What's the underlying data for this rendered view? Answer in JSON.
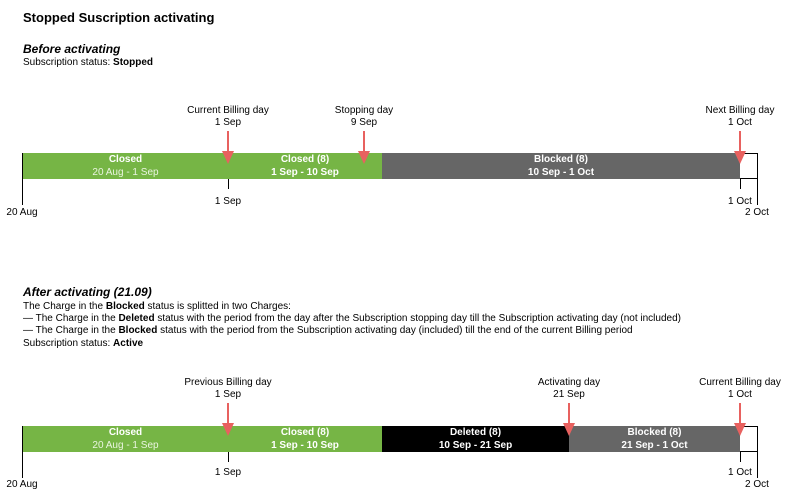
{
  "title": "Stopped Suscription activating",
  "before": {
    "heading": "Before activating",
    "status_prefix": "Subscription status:",
    "status_value": "Stopped",
    "markers": [
      {
        "name": "current-billing-day",
        "label": "Current Billing day",
        "date": "1 Sep"
      },
      {
        "name": "stopping-day",
        "label": "Stopping day",
        "date": "9 Sep"
      },
      {
        "name": "next-billing-day",
        "label": "Next Billing day",
        "date": "1 Oct"
      }
    ],
    "segments": [
      {
        "name": "closed",
        "status": "Closed",
        "period": "20 Aug - 1 Sep"
      },
      {
        "name": "closed-8",
        "status": "Closed (8)",
        "period": "1 Sep - 10 Sep"
      },
      {
        "name": "blocked-8",
        "status": "Blocked (8)",
        "period": "10 Sep - 1 Oct"
      }
    ],
    "axis": {
      "start": "20 Aug",
      "tick_1": "1 Sep",
      "tick_2": "1 Oct",
      "end": "2 Oct"
    }
  },
  "after": {
    "heading": "After activating (21.09)",
    "desc_1_pre": "The Charge in the",
    "desc_1_bold": "Blocked",
    "desc_1_post": "status is splitted in two Charges:",
    "desc_2_pre": "— The Charge in the",
    "desc_2_bold": "Deleted",
    "desc_2_post": "status with the period from the day after the Subscription stopping day till the Subscription activating day (not included)",
    "desc_3_pre": "— The Charge in the",
    "desc_3_bold": "Blocked",
    "desc_3_post": "status with the period from the Subscription activating day (included) till the end of the current Billing period",
    "status_prefix": "Subscription status:",
    "status_value": "Active",
    "markers": [
      {
        "name": "previous-billing-day",
        "label": "Previous Billing day",
        "date": "1 Sep"
      },
      {
        "name": "activating-day",
        "label": "Activating day",
        "date": "21 Sep"
      },
      {
        "name": "current-billing-day",
        "label": "Current Billing day",
        "date": "1 Oct"
      }
    ],
    "segments": [
      {
        "name": "closed",
        "status": "Closed",
        "period": "20 Aug - 1 Sep"
      },
      {
        "name": "closed-8",
        "status": "Closed (8)",
        "period": "1 Sep - 10 Sep"
      },
      {
        "name": "deleted-8",
        "status": "Deleted (8)",
        "period": "10 Sep - 21 Sep"
      },
      {
        "name": "blocked-8",
        "status": "Blocked (8)",
        "period": "21 Sep - 1 Oct"
      }
    ],
    "axis": {
      "start": "20 Aug",
      "tick_1": "1 Sep",
      "tick_2": "1 Oct",
      "end": "2 Oct"
    }
  },
  "colors": {
    "closed": "#76b545",
    "blocked": "#666666",
    "deleted": "#000000",
    "arrow": "#e8615f"
  }
}
